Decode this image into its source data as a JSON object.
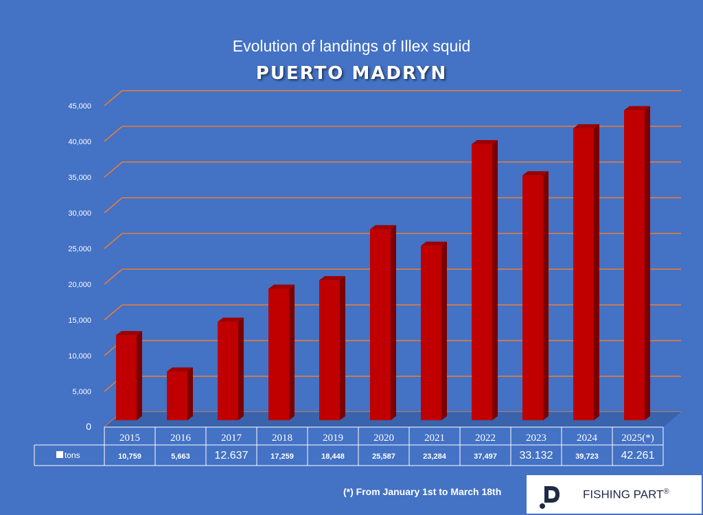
{
  "chart_data": {
    "type": "bar",
    "title": "Evolution of landings of Illex squid",
    "subtitle": "PUERTO MADRYN",
    "categories": [
      "2015",
      "2016",
      "2017",
      "2018",
      "2019",
      "2020",
      "2021",
      "2022",
      "2023",
      "2024",
      "2025(*)"
    ],
    "series": [
      {
        "name": "tons",
        "values": [
          10759,
          5663,
          12637,
          17259,
          18448,
          25587,
          23284,
          37497,
          33132,
          39723,
          42261
        ]
      }
    ],
    "value_labels": [
      "10,759",
      "5,663",
      "12.637",
      "17,259",
      "18,448",
      "25,587",
      "23,284",
      "37,497",
      "33.132",
      "39,723",
      "42.261"
    ],
    "yticks": [
      0,
      5000,
      10000,
      15000,
      20000,
      25000,
      30000,
      35000,
      40000,
      45000
    ],
    "ytick_labels": [
      "0",
      "5,000",
      "10,000",
      "15,000",
      "20,000",
      "25,000",
      "30,000",
      "35,000",
      "40,000",
      "45,000"
    ],
    "ylim": [
      0,
      45000
    ],
    "grid": true,
    "legend": "data-table",
    "bar_color": "#c00000",
    "grid_color": "#ed7d31"
  },
  "footnote": "(*) From January 1st to March 18th",
  "brand": {
    "name": "FISHING PART",
    "mark": "®"
  }
}
